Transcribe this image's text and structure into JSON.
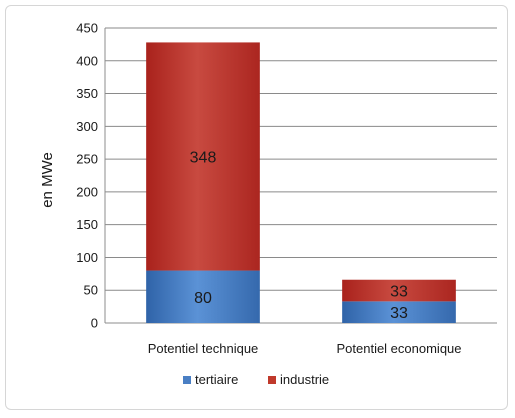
{
  "chart_data": {
    "type": "bar",
    "stacked": true,
    "categories": [
      "Potentiel technique",
      "Potentiel economique"
    ],
    "series": [
      {
        "name": "tertiaire",
        "values": [
          80,
          33
        ],
        "color": "#4a7fc4"
      },
      {
        "name": "industrie",
        "values": [
          348,
          33
        ],
        "color": "#c0392b"
      }
    ],
    "ylabel": "en MWe",
    "xlabel": "",
    "ylim": [
      0,
      450
    ],
    "yticks": [
      0,
      50,
      100,
      150,
      200,
      250,
      300,
      350,
      400,
      450
    ],
    "grid": true,
    "legend": "bottom"
  }
}
